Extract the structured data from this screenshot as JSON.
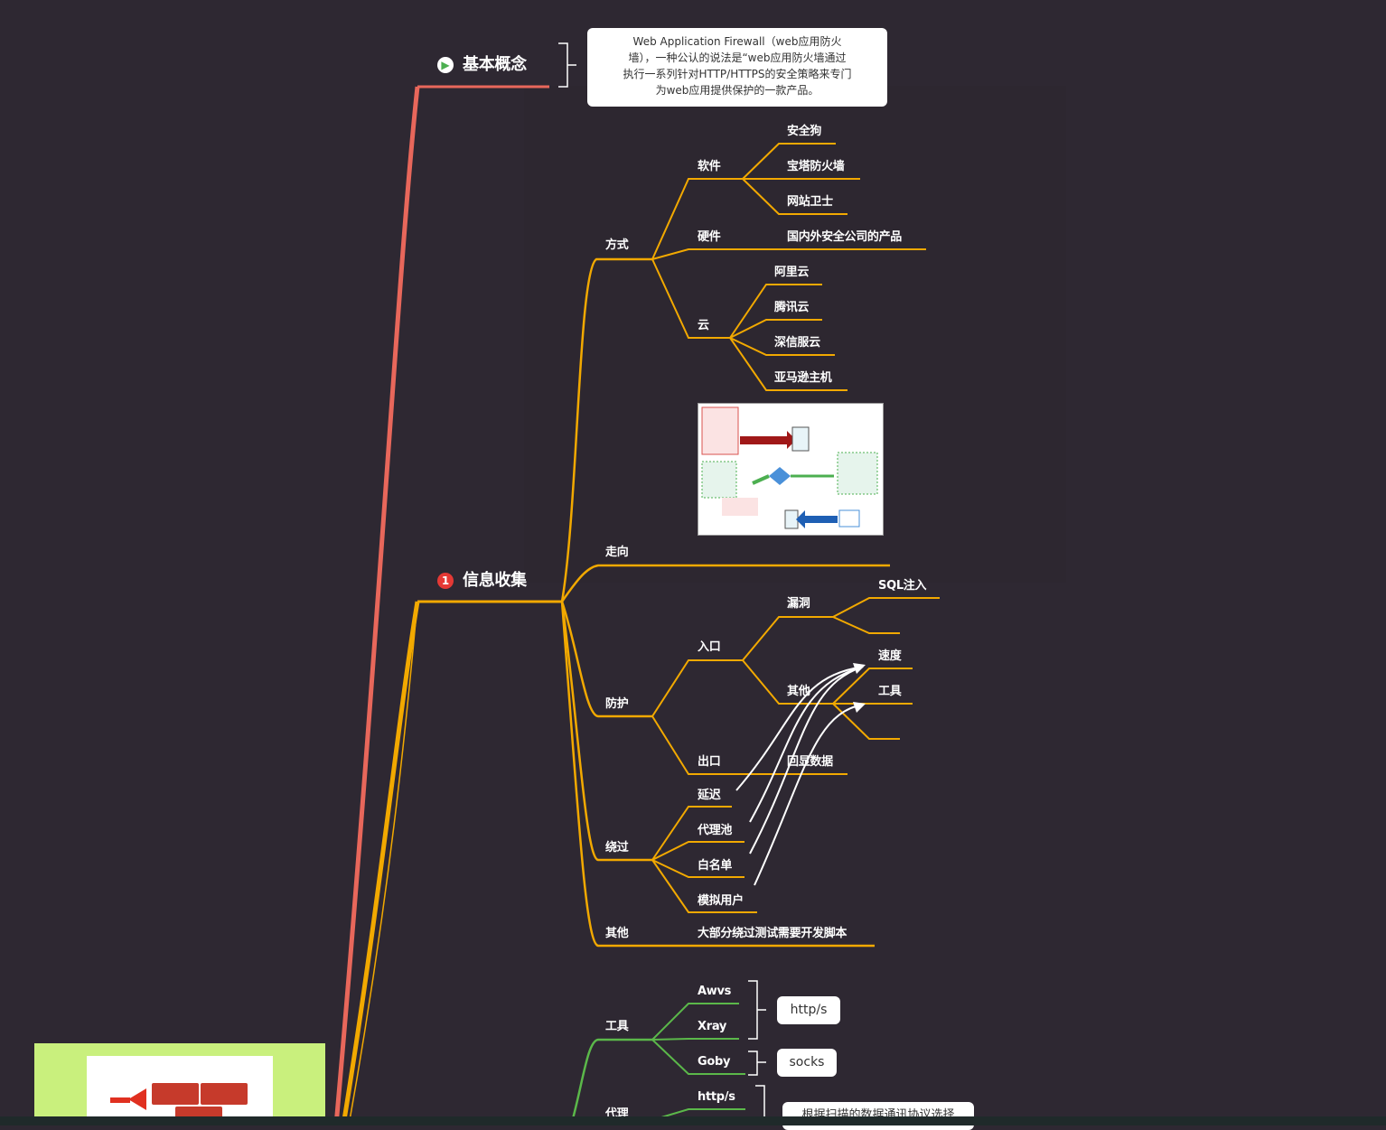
{
  "topics": [
    {
      "label": "基本概念",
      "icon": "play-icon",
      "icon_glyph": "▶",
      "color": "#e8675b",
      "icon_color": "#4caf50"
    },
    {
      "label": "信息收集",
      "icon": "number-1-icon",
      "icon_glyph": "1",
      "color": "#f2a900",
      "icon_color": "#e53935"
    }
  ],
  "concept": {
    "callout_lines": [
      "Web Application Firewall（web应用防火",
      "墙），一种公认的说法是“web应用防火墙通过",
      "执行一系列针对HTTP/HTTPS的安全策略来专门",
      "为web应用提供保护的一款产品。"
    ]
  },
  "info": {
    "method": {
      "label": "方式",
      "software": {
        "label": "软件",
        "items": [
          "安全狗",
          "宝塔防火墙",
          "网站卫士"
        ]
      },
      "hardware": {
        "label": "硬件",
        "items": [
          "国内外安全公司的产品"
        ]
      },
      "cloud": {
        "label": "云",
        "items": [
          "阿里云",
          "腾讯云",
          "深信服云",
          "亚马逊主机"
        ]
      }
    },
    "direction": {
      "label": "走向"
    },
    "protect": {
      "label": "防护",
      "entry": {
        "label": "入口",
        "vuln": {
          "label": "漏洞",
          "items": [
            "SQL注入",
            ""
          ]
        },
        "other": {
          "label": "其他",
          "items": [
            "速度",
            "工具",
            ""
          ]
        }
      },
      "exit": {
        "label": "出口",
        "items": [
          "回显数据"
        ]
      }
    },
    "bypass": {
      "label": "绕过",
      "items": [
        "延迟",
        "代理池",
        "白名单",
        "模拟用户"
      ]
    },
    "other": {
      "label": "其他",
      "items": [
        "大部分绕过测试需要开发脚本"
      ]
    }
  },
  "tools_branch": {
    "label": "工具",
    "items": [
      "Awvs",
      "Xray",
      "Goby"
    ],
    "tag_https": "http/s",
    "tag_socks": "socks"
  },
  "proxy_branch": {
    "label": "代理",
    "items": [
      "http/s"
    ],
    "note": "根据扫描的数据通讯协议选择"
  },
  "colors": {
    "background": "#2e2832",
    "orange": "#f2a900",
    "red": "#e8675b",
    "green": "#5bb84a",
    "white": "#ffffff"
  }
}
